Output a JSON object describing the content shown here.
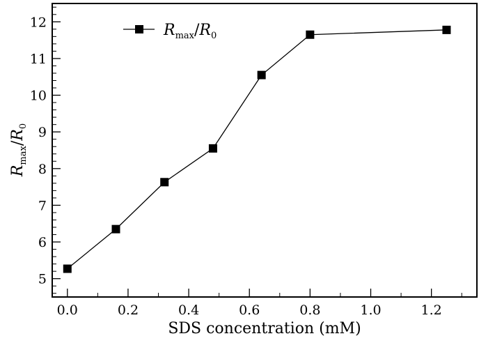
{
  "chart_data": {
    "type": "line",
    "title": "",
    "xlabel": "SDS concentration (mM)",
    "ylabel": {
      "main": "R",
      "sub": "max",
      "slash": "/",
      "main2": "R",
      "sub2": "0"
    },
    "xlim": [
      -0.05,
      1.35
    ],
    "ylim": [
      4.5,
      12.5
    ],
    "xticks": [
      "0.0",
      "0.2",
      "0.4",
      "0.6",
      "0.8",
      "1.0",
      "1.2"
    ],
    "yticks": [
      "5",
      "6",
      "7",
      "8",
      "9",
      "10",
      "11",
      "12"
    ],
    "grid": false,
    "legend_position": "top-left",
    "series": [
      {
        "name": "Rmax/R0",
        "legend": {
          "main": "R",
          "sub": "max",
          "slash": "/",
          "main2": "R",
          "sub2": "0"
        },
        "marker": "square",
        "color": "#000000",
        "x": [
          0.0,
          0.16,
          0.32,
          0.48,
          0.64,
          0.8,
          1.25
        ],
        "y": [
          5.27,
          6.35,
          7.63,
          8.55,
          10.55,
          11.65,
          11.78
        ]
      }
    ]
  }
}
